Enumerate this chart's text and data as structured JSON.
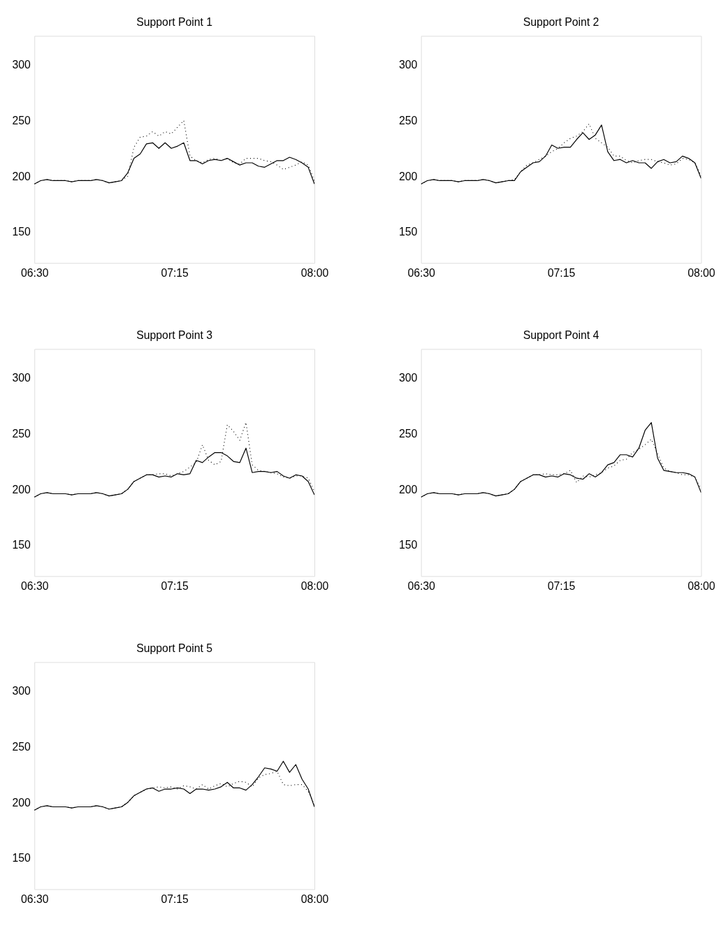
{
  "chart_data": [
    {
      "type": "line",
      "title": "Support Point 1",
      "x": [
        6.5,
        6.5333,
        6.5667,
        6.6,
        6.6333,
        6.6667,
        6.7,
        6.7333,
        6.7667,
        6.8,
        6.8333,
        6.8667,
        6.9,
        6.9333,
        6.9667,
        7.0,
        7.0333,
        7.0667,
        7.1,
        7.1333,
        7.1667,
        7.2,
        7.2333,
        7.2667,
        7.3,
        7.3333,
        7.3667,
        7.4,
        7.4333,
        7.4667,
        7.5,
        7.5333,
        7.5667,
        7.6,
        7.6333,
        7.6667,
        7.7,
        7.7333,
        7.7667,
        7.8,
        7.8333,
        7.8667,
        7.9,
        7.9333,
        7.9667,
        8.0
      ],
      "series": [
        {
          "color": "#000000",
          "line_style": "solid",
          "values": [
            193,
            196,
            197,
            196,
            196,
            196,
            195,
            196,
            196,
            196,
            197,
            196,
            194,
            195,
            196,
            203,
            216,
            220,
            229,
            230,
            225,
            230,
            225,
            227,
            230,
            214,
            214,
            211,
            214,
            215,
            214,
            216,
            213,
            210,
            212,
            212,
            209,
            208,
            211,
            214,
            214,
            217,
            215,
            212,
            208,
            193
          ]
        },
        {
          "color": "#000000",
          "line_style": "dotted",
          "values": [
            193,
            196,
            197,
            196,
            196,
            196,
            195,
            196,
            196,
            196,
            197,
            196,
            194,
            195,
            196,
            200,
            226,
            235,
            236,
            240,
            236,
            240,
            238,
            244,
            250,
            218,
            214,
            212,
            215,
            216,
            214,
            216,
            212,
            211,
            216,
            216,
            216,
            214,
            213,
            210,
            206,
            208,
            210,
            213,
            210,
            196
          ]
        }
      ],
      "xlim": [
        6.5,
        8.0
      ],
      "ylim": [
        122,
        326
      ],
      "xticks": [
        {
          "value": 6.5,
          "label": "06:30"
        },
        {
          "value": 7.25,
          "label": "07:15"
        },
        {
          "value": 8.0,
          "label": "08:00"
        }
      ],
      "yticks": [
        150,
        200,
        250,
        300
      ],
      "grid": false
    },
    {
      "type": "line",
      "title": "Support Point 2",
      "x": [
        6.5,
        6.5333,
        6.5667,
        6.6,
        6.6333,
        6.6667,
        6.7,
        6.7333,
        6.7667,
        6.8,
        6.8333,
        6.8667,
        6.9,
        6.9333,
        6.9667,
        7.0,
        7.0333,
        7.0667,
        7.1,
        7.1333,
        7.1667,
        7.2,
        7.2333,
        7.2667,
        7.3,
        7.3333,
        7.3667,
        7.4,
        7.4333,
        7.4667,
        7.5,
        7.5333,
        7.5667,
        7.6,
        7.6333,
        7.6667,
        7.7,
        7.7333,
        7.7667,
        7.8,
        7.8333,
        7.8667,
        7.9,
        7.9333,
        7.9667,
        8.0
      ],
      "series": [
        {
          "color": "#000000",
          "line_style": "solid",
          "values": [
            193,
            196,
            197,
            196,
            196,
            196,
            195,
            196,
            196,
            196,
            197,
            196,
            194,
            195,
            196,
            196,
            204,
            208,
            212,
            213,
            218,
            228,
            225,
            226,
            226,
            233,
            239,
            233,
            237,
            246,
            222,
            214,
            215,
            212,
            214,
            212,
            212,
            207,
            213,
            215,
            212,
            213,
            218,
            216,
            212,
            198
          ]
        },
        {
          "color": "#000000",
          "line_style": "dotted",
          "values": [
            193,
            196,
            197,
            196,
            196,
            196,
            195,
            196,
            196,
            196,
            197,
            196,
            194,
            195,
            196,
            197,
            204,
            210,
            212,
            215,
            218,
            222,
            225,
            230,
            234,
            236,
            240,
            247,
            234,
            230,
            226,
            218,
            218,
            214,
            212,
            214,
            215,
            215,
            213,
            212,
            210,
            211,
            216,
            215,
            212,
            200
          ]
        }
      ],
      "xlim": [
        6.5,
        8.0
      ],
      "ylim": [
        122,
        326
      ],
      "xticks": [
        {
          "value": 6.5,
          "label": "06:30"
        },
        {
          "value": 7.25,
          "label": "07:15"
        },
        {
          "value": 8.0,
          "label": "08:00"
        }
      ],
      "yticks": [
        150,
        200,
        250,
        300
      ],
      "grid": false
    },
    {
      "type": "line",
      "title": "Support Point 3",
      "x": [
        6.5,
        6.5333,
        6.5667,
        6.6,
        6.6333,
        6.6667,
        6.7,
        6.7333,
        6.7667,
        6.8,
        6.8333,
        6.8667,
        6.9,
        6.9333,
        6.9667,
        7.0,
        7.0333,
        7.0667,
        7.1,
        7.1333,
        7.1667,
        7.2,
        7.2333,
        7.2667,
        7.3,
        7.3333,
        7.3667,
        7.4,
        7.4333,
        7.4667,
        7.5,
        7.5333,
        7.5667,
        7.6,
        7.6333,
        7.6667,
        7.7,
        7.7333,
        7.7667,
        7.8,
        7.8333,
        7.8667,
        7.9,
        7.9333,
        7.9667,
        8.0
      ],
      "series": [
        {
          "color": "#000000",
          "line_style": "solid",
          "values": [
            193,
            196,
            197,
            196,
            196,
            196,
            195,
            196,
            196,
            196,
            197,
            196,
            194,
            195,
            196,
            200,
            207,
            210,
            213,
            213,
            211,
            212,
            211,
            214,
            213,
            214,
            226,
            224,
            229,
            233,
            233,
            230,
            225,
            224,
            237,
            215,
            216,
            216,
            215,
            216,
            212,
            210,
            213,
            212,
            207,
            195
          ]
        },
        {
          "color": "#000000",
          "line_style": "dotted",
          "values": [
            193,
            196,
            197,
            196,
            196,
            196,
            195,
            196,
            196,
            196,
            197,
            196,
            194,
            195,
            196,
            200,
            207,
            210,
            213,
            213,
            214,
            214,
            212,
            214,
            216,
            220,
            224,
            240,
            226,
            222,
            225,
            258,
            252,
            244,
            260,
            222,
            217,
            216,
            215,
            214,
            211,
            210,
            212,
            212,
            210,
            198
          ]
        }
      ],
      "xlim": [
        6.5,
        8.0
      ],
      "ylim": [
        122,
        326
      ],
      "xticks": [
        {
          "value": 6.5,
          "label": "06:30"
        },
        {
          "value": 7.25,
          "label": "07:15"
        },
        {
          "value": 8.0,
          "label": "08:00"
        }
      ],
      "yticks": [
        150,
        200,
        250,
        300
      ],
      "grid": false
    },
    {
      "type": "line",
      "title": "Support Point 4",
      "x": [
        6.5,
        6.5333,
        6.5667,
        6.6,
        6.6333,
        6.6667,
        6.7,
        6.7333,
        6.7667,
        6.8,
        6.8333,
        6.8667,
        6.9,
        6.9333,
        6.9667,
        7.0,
        7.0333,
        7.0667,
        7.1,
        7.1333,
        7.1667,
        7.2,
        7.2333,
        7.2667,
        7.3,
        7.3333,
        7.3667,
        7.4,
        7.4333,
        7.4667,
        7.5,
        7.5333,
        7.5667,
        7.6,
        7.6333,
        7.6667,
        7.7,
        7.7333,
        7.7667,
        7.8,
        7.8333,
        7.8667,
        7.9,
        7.9333,
        7.9667,
        8.0
      ],
      "series": [
        {
          "color": "#000000",
          "line_style": "solid",
          "values": [
            193,
            196,
            197,
            196,
            196,
            196,
            195,
            196,
            196,
            196,
            197,
            196,
            194,
            195,
            196,
            200,
            207,
            210,
            213,
            213,
            211,
            212,
            211,
            214,
            213,
            210,
            209,
            214,
            211,
            215,
            222,
            224,
            231,
            231,
            229,
            237,
            253,
            260,
            228,
            217,
            216,
            215,
            215,
            214,
            211,
            197
          ]
        },
        {
          "color": "#000000",
          "line_style": "dotted",
          "values": [
            193,
            196,
            197,
            196,
            196,
            196,
            195,
            196,
            196,
            196,
            197,
            196,
            194,
            195,
            196,
            200,
            207,
            210,
            213,
            213,
            214,
            213,
            213,
            214,
            217,
            206,
            212,
            211,
            213,
            215,
            219,
            221,
            226,
            227,
            233,
            236,
            240,
            245,
            232,
            219,
            216,
            215,
            213,
            213,
            211,
            200
          ]
        }
      ],
      "xlim": [
        6.5,
        8.0
      ],
      "ylim": [
        122,
        326
      ],
      "xticks": [
        {
          "value": 6.5,
          "label": "06:30"
        },
        {
          "value": 7.25,
          "label": "07:15"
        },
        {
          "value": 8.0,
          "label": "08:00"
        }
      ],
      "yticks": [
        150,
        200,
        250,
        300
      ],
      "grid": false
    },
    {
      "type": "line",
      "title": "Support Point 5",
      "x": [
        6.5,
        6.5333,
        6.5667,
        6.6,
        6.6333,
        6.6667,
        6.7,
        6.7333,
        6.7667,
        6.8,
        6.8333,
        6.8667,
        6.9,
        6.9333,
        6.9667,
        7.0,
        7.0333,
        7.0667,
        7.1,
        7.1333,
        7.1667,
        7.2,
        7.2333,
        7.2667,
        7.3,
        7.3333,
        7.3667,
        7.4,
        7.4333,
        7.4667,
        7.5,
        7.5333,
        7.5667,
        7.6,
        7.6333,
        7.6667,
        7.7,
        7.7333,
        7.7667,
        7.8,
        7.8333,
        7.8667,
        7.9,
        7.9333,
        7.9667,
        8.0
      ],
      "series": [
        {
          "color": "#000000",
          "line_style": "solid",
          "values": [
            193,
            196,
            197,
            196,
            196,
            196,
            195,
            196,
            196,
            196,
            197,
            196,
            194,
            195,
            196,
            200,
            206,
            209,
            212,
            213,
            210,
            212,
            212,
            213,
            212,
            208,
            212,
            212,
            211,
            212,
            214,
            218,
            213,
            213,
            211,
            216,
            223,
            231,
            230,
            228,
            237,
            227,
            234,
            221,
            212,
            196
          ]
        },
        {
          "color": "#000000",
          "line_style": "dotted",
          "values": [
            193,
            196,
            197,
            196,
            196,
            196,
            195,
            196,
            196,
            196,
            197,
            196,
            194,
            195,
            196,
            200,
            206,
            209,
            212,
            213,
            214,
            213,
            214,
            212,
            215,
            214,
            212,
            216,
            212,
            215,
            217,
            214,
            217,
            219,
            218,
            214,
            222,
            225,
            226,
            228,
            216,
            215,
            216,
            216,
            210,
            198
          ]
        }
      ],
      "xlim": [
        6.5,
        8.0
      ],
      "ylim": [
        122,
        326
      ],
      "xticks": [
        {
          "value": 6.5,
          "label": "06:30"
        },
        {
          "value": 7.25,
          "label": "07:15"
        },
        {
          "value": 8.0,
          "label": "08:00"
        }
      ],
      "yticks": [
        150,
        200,
        250,
        300
      ],
      "grid": false
    }
  ]
}
